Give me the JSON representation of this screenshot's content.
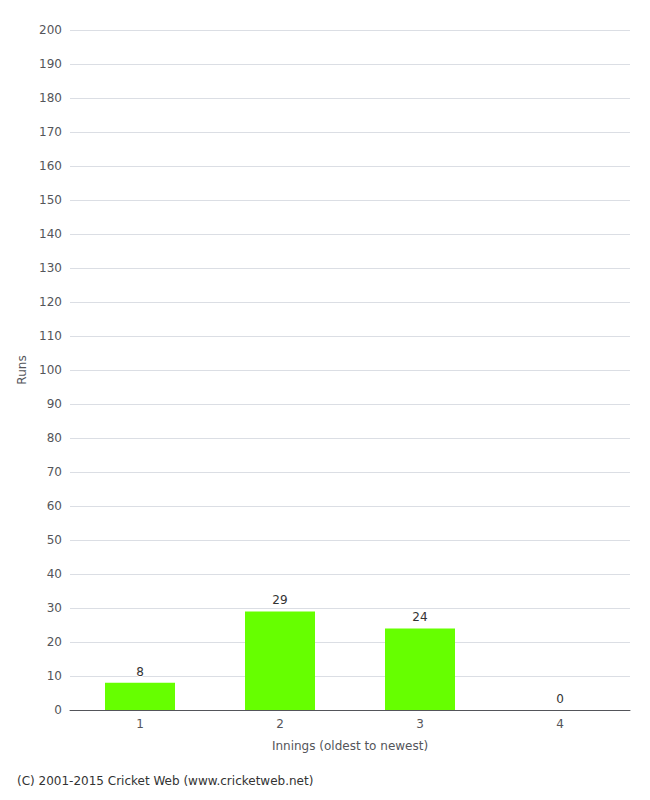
{
  "chart_data": {
    "type": "bar",
    "categories": [
      "1",
      "2",
      "3",
      "4"
    ],
    "values": [
      8,
      29,
      24,
      0
    ],
    "color": "#66ff00",
    "xlabel": "Innings (oldest to newest)",
    "ylabel": "Runs",
    "ylim": [
      0,
      200
    ],
    "yticks": [
      0,
      10,
      20,
      30,
      40,
      50,
      60,
      70,
      80,
      90,
      100,
      110,
      120,
      130,
      140,
      150,
      160,
      170,
      180,
      190,
      200
    ],
    "grid": true,
    "data_labels": true,
    "footer": "(C) 2001-2015 Cricket Web (www.cricketweb.net)"
  }
}
